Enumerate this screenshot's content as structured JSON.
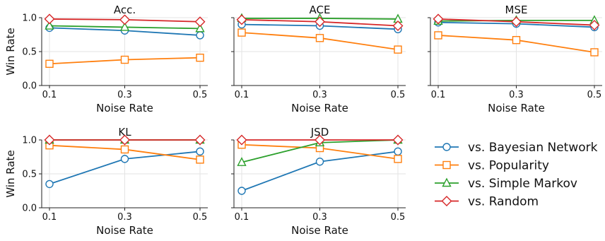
{
  "chart_data": {
    "type": "line",
    "x": [
      0.1,
      0.3,
      0.5
    ],
    "xlabel": "Noise Rate",
    "ylabel": "Win Rate",
    "ylim": [
      0.0,
      1.0
    ],
    "yticks": [
      "0.0",
      "0.5",
      "1.0"
    ],
    "xticks": [
      "0.1",
      "0.3",
      "0.5"
    ],
    "grid": true,
    "legend_position": "right",
    "series_styles": [
      {
        "name": "vs. Bayesian Network",
        "color": "#1f77b4",
        "marker": "circle"
      },
      {
        "name": "vs. Popularity",
        "color": "#ff7f0e",
        "marker": "square"
      },
      {
        "name": "vs. Simple Markov",
        "color": "#2ca02c",
        "marker": "triangle"
      },
      {
        "name": "vs. Random",
        "color": "#d62728",
        "marker": "diamond"
      }
    ],
    "panels": [
      {
        "title": "Acc.",
        "series": [
          {
            "name": "vs. Bayesian Network",
            "values": [
              0.85,
              0.81,
              0.74
            ]
          },
          {
            "name": "vs. Popularity",
            "values": [
              0.32,
              0.38,
              0.41
            ]
          },
          {
            "name": "vs. Simple Markov",
            "values": [
              0.88,
              0.86,
              0.84
            ]
          },
          {
            "name": "vs. Random",
            "values": [
              0.98,
              0.97,
              0.94
            ]
          }
        ]
      },
      {
        "title": "ACE",
        "series": [
          {
            "name": "vs. Bayesian Network",
            "values": [
              0.9,
              0.88,
              0.83
            ]
          },
          {
            "name": "vs. Popularity",
            "values": [
              0.78,
              0.7,
              0.53
            ]
          },
          {
            "name": "vs. Simple Markov",
            "values": [
              0.99,
              0.99,
              0.98
            ]
          },
          {
            "name": "vs. Random",
            "values": [
              0.97,
              0.94,
              0.88
            ]
          }
        ]
      },
      {
        "title": "MSE",
        "series": [
          {
            "name": "vs. Bayesian Network",
            "values": [
              0.93,
              0.91,
              0.86
            ]
          },
          {
            "name": "vs. Popularity",
            "values": [
              0.74,
              0.67,
              0.49
            ]
          },
          {
            "name": "vs. Simple Markov",
            "values": [
              0.95,
              0.96,
              0.96
            ]
          },
          {
            "name": "vs. Random",
            "values": [
              0.98,
              0.94,
              0.89
            ]
          }
        ]
      },
      {
        "title": "KL",
        "series": [
          {
            "name": "vs. Bayesian Network",
            "values": [
              0.35,
              0.72,
              0.83
            ]
          },
          {
            "name": "vs. Popularity",
            "values": [
              0.92,
              0.86,
              0.71
            ]
          },
          {
            "name": "vs. Simple Markov",
            "values": [
              1.0,
              1.0,
              1.0
            ]
          },
          {
            "name": "vs. Random",
            "values": [
              1.0,
              1.0,
              1.0
            ]
          }
        ]
      },
      {
        "title": "JSD",
        "series": [
          {
            "name": "vs. Bayesian Network",
            "values": [
              0.25,
              0.68,
              0.83
            ]
          },
          {
            "name": "vs. Popularity",
            "values": [
              0.93,
              0.88,
              0.72
            ]
          },
          {
            "name": "vs. Simple Markov",
            "values": [
              0.67,
              0.96,
              1.0
            ]
          },
          {
            "name": "vs. Random",
            "values": [
              1.0,
              1.0,
              1.0
            ]
          }
        ]
      }
    ]
  }
}
